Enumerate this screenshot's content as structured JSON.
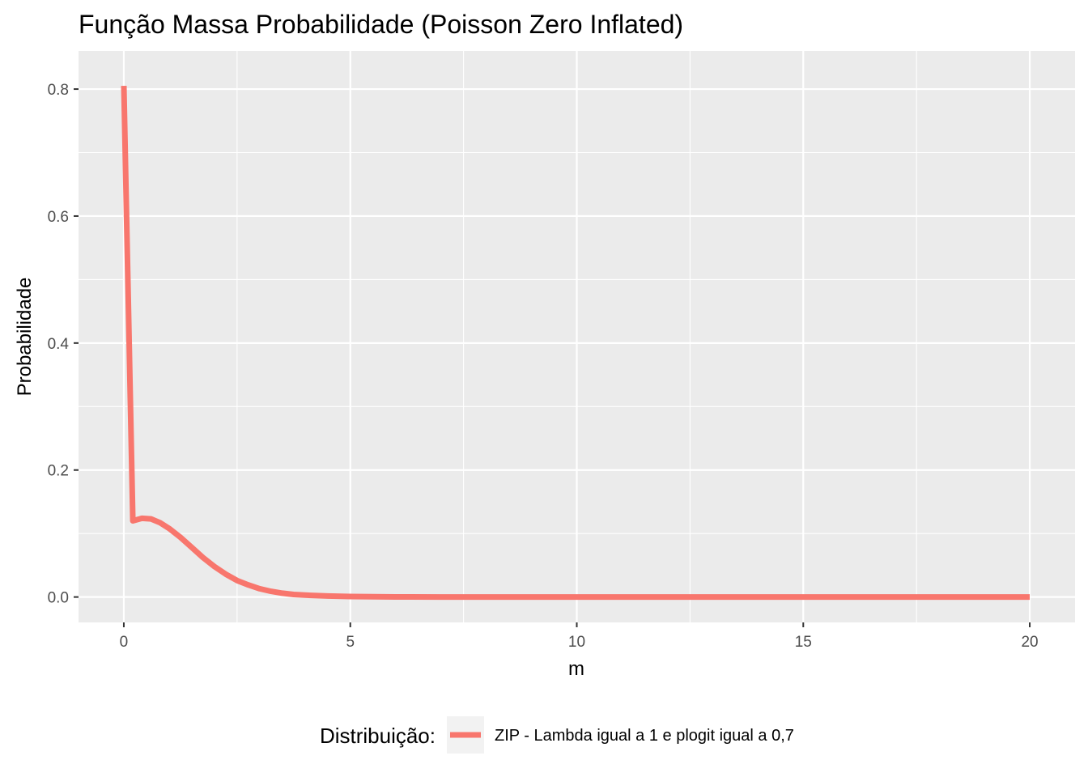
{
  "chart_data": {
    "type": "line",
    "title": "Função Massa Probabilidade (Poisson Zero Inflated)",
    "xlabel": "m",
    "ylabel": "Probabilidade",
    "xlim": [
      -1,
      21
    ],
    "ylim": [
      -0.04,
      0.86
    ],
    "x_ticks": [
      0,
      5,
      10,
      15,
      20
    ],
    "x_tick_labels": [
      "0",
      "5",
      "10",
      "15",
      "20"
    ],
    "y_ticks": [
      0.0,
      0.2,
      0.4,
      0.6,
      0.8
    ],
    "y_tick_labels": [
      "0.0",
      "0.2",
      "0.4",
      "0.6",
      "0.8"
    ],
    "grid": true,
    "legend": {
      "title": "Distribuição:",
      "position": "bottom"
    },
    "series": [
      {
        "name": "ZIP - Lambda igual a 1 e plogit igual a 0,7",
        "color": "#F8766D",
        "x": [
          0,
          0.2,
          0.4,
          0.6,
          0.8,
          1,
          1.25,
          1.5,
          1.75,
          2,
          2.25,
          2.5,
          2.75,
          3,
          3.25,
          3.5,
          3.75,
          4,
          4.5,
          5,
          5.5,
          6,
          7,
          8,
          10,
          12,
          14,
          16,
          18,
          20
        ],
        "y": [
          0.805,
          0.12,
          0.124,
          0.123,
          0.117,
          0.108,
          0.094,
          0.078,
          0.062,
          0.048,
          0.036,
          0.026,
          0.019,
          0.013,
          0.009,
          0.006,
          0.004,
          0.003,
          0.0015,
          0.0008,
          0.0004,
          0.0002,
          5e-05,
          1e-05,
          0,
          0,
          0,
          0,
          0,
          0
        ]
      }
    ]
  }
}
